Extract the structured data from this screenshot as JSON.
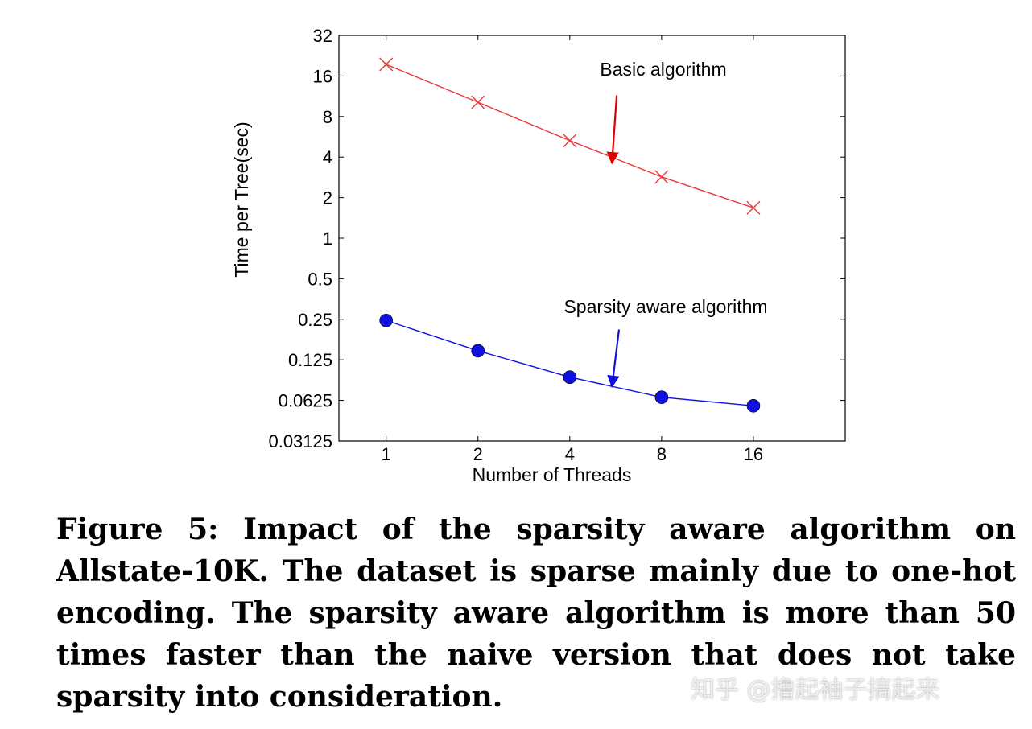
{
  "chart_data": {
    "type": "line",
    "xlabel": "Number of Threads",
    "ylabel": "Time per Tree(sec)",
    "x_scale": "log2",
    "y_scale": "log2",
    "x": [
      1,
      2,
      4,
      8,
      16
    ],
    "x_tick_labels": [
      "1",
      "2",
      "4",
      "8",
      "16"
    ],
    "y_ticks": [
      0.03125,
      0.0625,
      0.125,
      0.25,
      0.5,
      1,
      2,
      4,
      8,
      16,
      32
    ],
    "y_tick_labels": [
      "0.03125",
      "0.0625",
      "0.125",
      "0.25",
      "0.5",
      "1",
      "2",
      "4",
      "8",
      "16",
      "32"
    ],
    "xlim": [
      0.7,
      32
    ],
    "ylim": [
      0.03125,
      32
    ],
    "grid": false,
    "series": [
      {
        "name": "Basic algorithm",
        "color": "#e8383a",
        "marker": "x",
        "values": [
          19.5,
          10.2,
          5.3,
          2.85,
          1.68
        ]
      },
      {
        "name": "Sparsity aware algorithm",
        "color": "#1010e0",
        "marker": "circle",
        "values": [
          0.245,
          0.146,
          0.093,
          0.066,
          0.057
        ]
      }
    ],
    "annotations": [
      {
        "text": "Basic algorithm",
        "arrow_color": "#e00000",
        "arrow_from": [
          5.7,
          11.5
        ],
        "arrow_to": [
          5.5,
          3.6
        ]
      },
      {
        "text": "Sparsity aware algorithm",
        "arrow_color": "#1010e0",
        "arrow_from": [
          5.8,
          0.21
        ],
        "arrow_to": [
          5.5,
          0.079
        ]
      }
    ]
  },
  "caption": "Figure 5: Impact of the sparsity aware algorithm on Allstate-10K. The dataset is sparse mainly due to one-hot encoding. The sparsity aware algorithm is more than 50 times faster than the naive version that does not take sparsity into consideration.",
  "watermark": "知乎 @撸起袖子搞起来"
}
